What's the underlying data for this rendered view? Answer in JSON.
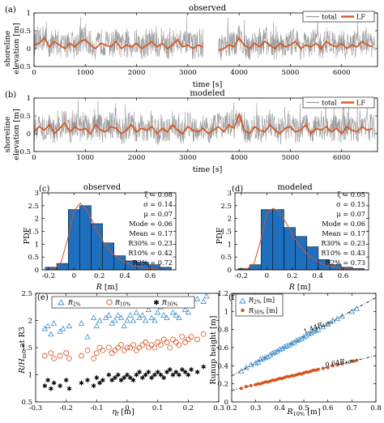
{
  "colors": {
    "total": "#9a9a9a",
    "lf": "#d9541e",
    "bar": "#1f6fbf",
    "pdf_line": "#d9541e",
    "r2": "#3a8fd0",
    "r10": "#d9541e",
    "r30": "#e8b220"
  },
  "chart_data": [
    {
      "id": "a",
      "type": "line",
      "panel_label": "(a)",
      "title": "observed",
      "ylabel": "shoreline\nelevation [m]",
      "xlabel": "time [s]",
      "xlim": [
        0,
        6700
      ],
      "ylim": [
        -0.5,
        1
      ],
      "xticks": [
        "0",
        "1000",
        "2000",
        "3000",
        "4000",
        "5000",
        "6000"
      ],
      "yticks": [
        "-0.5",
        "0",
        "0.5",
        "1"
      ],
      "legend": [
        "total",
        "LF"
      ],
      "legend_position": "top-right",
      "series": [
        {
          "name": "LF",
          "x": [
            0,
            100,
            200,
            300,
            400,
            500,
            600,
            700,
            800,
            900,
            1000,
            1100,
            1200,
            1300,
            1400,
            1500,
            1600,
            1700,
            1800,
            1900,
            2000,
            2100,
            2200,
            2300,
            2400,
            2500,
            2600,
            2700,
            2800,
            2900,
            3000,
            3100,
            3200,
            3300,
            3600,
            3700,
            3800,
            3900,
            4000,
            4100,
            4200,
            4300,
            4400,
            4500,
            4600,
            4700,
            4800,
            4900,
            5000,
            5100,
            5200,
            5300,
            5400,
            5500,
            5600,
            5700,
            5800,
            5900,
            6000,
            6100,
            6200,
            6300,
            6400,
            6500,
            6600
          ],
          "values": [
            0.1,
            0.15,
            0.3,
            0.05,
            0.2,
            0.1,
            0.0,
            0.15,
            0.05,
            0.2,
            0.25,
            0.1,
            0.0,
            0.15,
            0.1,
            0.05,
            0.2,
            0.0,
            0.1,
            0.05,
            0.15,
            0.0,
            0.1,
            0.2,
            0.05,
            0.15,
            0.0,
            0.1,
            0.25,
            0.05,
            0.1,
            0.0,
            0.1,
            0.05,
            -0.05,
            0.0,
            0.1,
            0.05,
            0.3,
            0.1,
            0.0,
            0.15,
            0.05,
            0.2,
            0.1,
            0.0,
            0.15,
            0.05,
            0.1,
            0.2,
            0.0,
            0.1,
            0.05,
            0.15,
            0.0,
            0.2,
            0.1,
            0.05,
            0.15,
            0.0,
            0.1,
            0.05,
            0.2,
            0.1,
            0.05
          ]
        }
      ]
    },
    {
      "id": "b",
      "type": "line",
      "panel_label": "(b)",
      "title": "modeled",
      "ylabel": "shoreline\nelevation [m]",
      "xlabel": "time [s]",
      "xlim": [
        0,
        6700
      ],
      "ylim": [
        -0.5,
        1
      ],
      "xticks": [
        "0",
        "1000",
        "2000",
        "3000",
        "4000",
        "5000",
        "6000"
      ],
      "yticks": [
        "-0.5",
        "0",
        "0.5",
        "1"
      ],
      "legend": [
        "total",
        "LF"
      ],
      "legend_position": "top-right",
      "series": [
        {
          "name": "LF",
          "x": [
            0,
            100,
            200,
            300,
            400,
            500,
            600,
            700,
            800,
            900,
            1000,
            1100,
            1200,
            1300,
            1400,
            1500,
            1600,
            1700,
            1800,
            1900,
            2000,
            2100,
            2200,
            2300,
            2400,
            2500,
            2600,
            2700,
            2800,
            2900,
            3000,
            3100,
            3200,
            3300,
            3400,
            3500,
            3600,
            3700,
            3800,
            3900,
            4000,
            4100,
            4200,
            4300,
            4400,
            4500,
            4600,
            4700,
            4800,
            4900,
            5000,
            5100,
            5200,
            5300,
            5400,
            5500,
            5600,
            5700,
            5800,
            5900,
            6000,
            6100,
            6200,
            6300,
            6400,
            6500,
            6600
          ],
          "values": [
            0.05,
            0.2,
            0.1,
            0.25,
            0.0,
            0.15,
            0.3,
            0.05,
            0.2,
            0.1,
            0.15,
            0.0,
            0.25,
            0.1,
            0.05,
            0.2,
            0.15,
            0.0,
            0.1,
            0.25,
            0.05,
            0.15,
            0.1,
            0.2,
            0.0,
            0.15,
            0.05,
            0.25,
            0.1,
            0.0,
            0.2,
            0.1,
            0.05,
            0.15,
            0.0,
            0.1,
            0.2,
            0.05,
            0.25,
            0.15,
            0.55,
            0.1,
            0.0,
            0.2,
            0.1,
            0.05,
            0.25,
            0.1,
            0.0,
            0.15,
            0.2,
            0.05,
            0.1,
            0.25,
            0.0,
            0.15,
            0.1,
            0.2,
            0.05,
            0.15,
            0.0,
            0.2,
            0.1,
            0.05,
            0.2,
            0.1,
            0.15
          ]
        }
      ]
    },
    {
      "id": "c",
      "type": "bar",
      "panel_label": "(c)",
      "title": "observed",
      "ylabel": "PDF",
      "xlabel": "R [m]",
      "xlim": [
        -0.25,
        0.8
      ],
      "ylim": [
        0,
        3
      ],
      "xticks": [
        "-0.2",
        "0",
        "0.2",
        "0.4",
        "0.6"
      ],
      "yticks": [
        "0",
        "0.5",
        "1",
        "1.5",
        "2",
        "2.5",
        "3"
      ],
      "bin_width": 0.09,
      "categories": [
        "-0.18",
        "-0.09",
        "0",
        "0.09",
        "0.18",
        "0.27",
        "0.36",
        "0.45",
        "0.54",
        "0.63",
        "0.72"
      ],
      "values": [
        0.1,
        0.25,
        2.35,
        2.5,
        1.8,
        1.05,
        0.55,
        0.35,
        0.3,
        0.2,
        0.1
      ],
      "fit_x": [
        -0.2,
        -0.15,
        -0.1,
        -0.05,
        0.0,
        0.05,
        0.1,
        0.15,
        0.2,
        0.25,
        0.3,
        0.35,
        0.4,
        0.45,
        0.5,
        0.55,
        0.6,
        0.65,
        0.7,
        0.75
      ],
      "fit_y": [
        0.0,
        0.05,
        0.3,
        1.2,
        2.3,
        2.6,
        2.35,
        1.85,
        1.35,
        0.95,
        0.65,
        0.45,
        0.3,
        0.2,
        0.13,
        0.08,
        0.05,
        0.03,
        0.02,
        0.01
      ],
      "stats": [
        "ξ = 0.08",
        "σ = 0.14",
        "μ = 0.07",
        "Mode = 0.06",
        "Mean = 0.17",
        "R30% = 0.23",
        "R10% = 0.42",
        "R2% = 0.72"
      ]
    },
    {
      "id": "d",
      "type": "bar",
      "panel_label": "(d)",
      "title": "modeled",
      "ylabel": "PDF",
      "xlabel": "R [m]",
      "xlim": [
        -0.25,
        0.8
      ],
      "ylim": [
        0,
        3
      ],
      "xticks": [
        "-0.2",
        "0",
        "0.2",
        "0.4",
        "0.6"
      ],
      "yticks": [
        "0",
        "0.5",
        "1",
        "1.5",
        "2",
        "2.5",
        "3"
      ],
      "bin_width": 0.09,
      "categories": [
        "-0.18",
        "-0.09",
        "0",
        "0.09",
        "0.18",
        "0.27",
        "0.36",
        "0.45",
        "0.54",
        "0.63",
        "0.72"
      ],
      "values": [
        0.05,
        0.2,
        2.35,
        2.35,
        1.65,
        1.3,
        0.9,
        0.4,
        0.2,
        0.1,
        0.05
      ],
      "fit_x": [
        -0.2,
        -0.15,
        -0.1,
        -0.05,
        0.0,
        0.05,
        0.1,
        0.15,
        0.2,
        0.25,
        0.3,
        0.35,
        0.4,
        0.45,
        0.5,
        0.55,
        0.6,
        0.65,
        0.7,
        0.75
      ],
      "fit_y": [
        0.0,
        0.05,
        0.25,
        1.1,
        2.2,
        2.4,
        2.25,
        1.85,
        1.4,
        1.0,
        0.7,
        0.48,
        0.32,
        0.21,
        0.14,
        0.09,
        0.05,
        0.03,
        0.02,
        0.01
      ],
      "stats": [
        "ξ = 0.05",
        "σ = 0.15",
        "μ = 0.07",
        "Mode = 0.06",
        "Mean = 0.17",
        "R30% = 0.23",
        "R10% = 0.43",
        "R2% = 0.73"
      ]
    },
    {
      "id": "e",
      "type": "scatter",
      "panel_label": "(e)",
      "ylabel": "R/H_m0 at R3",
      "xlabel": "ηf [m]",
      "xlim": [
        -0.3,
        0.3
      ],
      "ylim": [
        0.5,
        2.5
      ],
      "xticks": [
        "-0.3",
        "-0.2",
        "-0.1",
        "0",
        "0.1",
        "0.2",
        "0.3"
      ],
      "yticks": [
        "0.5",
        "1",
        "1.5",
        "2",
        "2.5"
      ],
      "legend": [
        "R2%",
        "R10%",
        "R30%"
      ],
      "legend_position": "top",
      "series": [
        {
          "name": "R2%",
          "x": [
            -0.27,
            -0.26,
            -0.25,
            -0.24,
            -0.22,
            -0.21,
            -0.19,
            -0.15,
            -0.13,
            -0.11,
            -0.1,
            -0.09,
            -0.07,
            -0.06,
            -0.05,
            -0.04,
            -0.03,
            -0.02,
            -0.01,
            0.0,
            0.01,
            0.02,
            0.03,
            0.04,
            0.05,
            0.06,
            0.07,
            0.08,
            0.09,
            0.1,
            0.11,
            0.12,
            0.13,
            0.14,
            0.15,
            0.16,
            0.17,
            0.18,
            0.19,
            0.2,
            0.21,
            0.23,
            0.25,
            0.26
          ],
          "values": [
            1.85,
            1.9,
            1.75,
            1.95,
            1.8,
            1.85,
            1.9,
            1.95,
            1.7,
            2.05,
            1.9,
            2.0,
            2.05,
            2.1,
            1.95,
            2.0,
            2.1,
            2.05,
            1.9,
            2.0,
            2.1,
            2.0,
            2.15,
            2.05,
            2.1,
            2.0,
            2.2,
            2.05,
            2.0,
            2.15,
            2.25,
            2.1,
            2.05,
            2.3,
            2.15,
            2.1,
            2.05,
            2.3,
            2.2,
            2.15,
            2.3,
            2.4,
            2.35,
            2.45
          ]
        },
        {
          "name": "R10%",
          "x": [
            -0.27,
            -0.25,
            -0.24,
            -0.22,
            -0.2,
            -0.19,
            -0.15,
            -0.13,
            -0.11,
            -0.1,
            -0.09,
            -0.08,
            -0.06,
            -0.05,
            -0.04,
            -0.03,
            -0.02,
            -0.01,
            0.0,
            0.01,
            0.02,
            0.03,
            0.04,
            0.05,
            0.06,
            0.07,
            0.08,
            0.09,
            0.1,
            0.11,
            0.12,
            0.13,
            0.14,
            0.15,
            0.16,
            0.17,
            0.18,
            0.19,
            0.2,
            0.21,
            0.23,
            0.25
          ],
          "values": [
            1.35,
            1.4,
            1.3,
            1.35,
            1.4,
            1.3,
            1.35,
            1.45,
            1.3,
            1.4,
            1.5,
            1.45,
            1.5,
            1.4,
            1.45,
            1.5,
            1.55,
            1.45,
            1.5,
            1.5,
            1.55,
            1.45,
            1.5,
            1.55,
            1.6,
            1.5,
            1.55,
            1.5,
            1.6,
            1.55,
            1.65,
            1.6,
            1.5,
            1.65,
            1.6,
            1.55,
            1.7,
            1.6,
            1.65,
            1.7,
            1.65,
            1.75
          ]
        },
        {
          "name": "R30%",
          "x": [
            -0.27,
            -0.26,
            -0.25,
            -0.24,
            -0.22,
            -0.2,
            -0.19,
            -0.15,
            -0.13,
            -0.11,
            -0.1,
            -0.09,
            -0.08,
            -0.06,
            -0.05,
            -0.04,
            -0.03,
            -0.02,
            -0.01,
            0.0,
            0.01,
            0.02,
            0.03,
            0.04,
            0.05,
            0.06,
            0.07,
            0.08,
            0.09,
            0.1,
            0.11,
            0.12,
            0.13,
            0.14,
            0.15,
            0.16,
            0.17,
            0.18,
            0.19,
            0.2,
            0.21,
            0.23,
            0.25
          ],
          "values": [
            0.8,
            0.9,
            0.75,
            0.85,
            0.8,
            0.9,
            0.75,
            0.85,
            0.9,
            0.8,
            0.95,
            0.85,
            0.9,
            1.0,
            0.9,
            0.95,
            1.0,
            0.9,
            0.95,
            1.0,
            0.95,
            0.9,
            1.0,
            1.05,
            0.95,
            1.0,
            1.05,
            0.95,
            1.0,
            1.05,
            1.0,
            0.95,
            1.05,
            1.1,
            1.0,
            1.05,
            1.0,
            1.1,
            1.05,
            1.0,
            1.1,
            1.05,
            1.15
          ]
        }
      ]
    },
    {
      "id": "f",
      "type": "scatter",
      "panel_label": "(f)",
      "ylabel": "Runup height [m]",
      "xlabel": "R10% [m]",
      "xlim": [
        0.2,
        0.8
      ],
      "ylim": [
        0,
        1.2
      ],
      "xticks": [
        "0.2",
        "0.3",
        "0.4",
        "0.5",
        "0.6",
        "0.7",
        "0.8"
      ],
      "yticks": [
        "0",
        "0.2",
        "0.4",
        "0.6",
        "0.8",
        "1",
        "1.2"
      ],
      "legend": [
        "R2% [m]",
        "R30% [m]"
      ],
      "legend_position": "top-left",
      "annotations": [
        "1.44R10%",
        "0.64R10%"
      ],
      "fit_lines": [
        {
          "series": "R2% [m]",
          "slope": 1.44,
          "x": [
            0.2,
            0.8
          ]
        },
        {
          "series": "R30% [m]",
          "slope": 0.64,
          "x": [
            0.2,
            0.8
          ]
        }
      ],
      "series": [
        {
          "name": "R2% [m]",
          "x": [
            0.24,
            0.26,
            0.28,
            0.3,
            0.31,
            0.32,
            0.33,
            0.34,
            0.35,
            0.36,
            0.37,
            0.38,
            0.39,
            0.4,
            0.41,
            0.42,
            0.43,
            0.44,
            0.45,
            0.46,
            0.47,
            0.48,
            0.49,
            0.5,
            0.51,
            0.52,
            0.53,
            0.54,
            0.55,
            0.56,
            0.58,
            0.6,
            0.62,
            0.64,
            0.66,
            0.7,
            0.72
          ],
          "values": [
            0.34,
            0.38,
            0.41,
            0.43,
            0.44,
            0.47,
            0.48,
            0.49,
            0.5,
            0.52,
            0.54,
            0.55,
            0.56,
            0.58,
            0.59,
            0.61,
            0.62,
            0.63,
            0.65,
            0.66,
            0.68,
            0.69,
            0.7,
            0.72,
            0.73,
            0.75,
            0.76,
            0.78,
            0.79,
            0.8,
            0.83,
            0.86,
            0.9,
            0.92,
            0.95,
            1.0,
            1.03
          ]
        },
        {
          "name": "R30% [m]",
          "x": [
            0.24,
            0.26,
            0.28,
            0.3,
            0.31,
            0.32,
            0.33,
            0.34,
            0.35,
            0.36,
            0.37,
            0.38,
            0.39,
            0.4,
            0.41,
            0.42,
            0.43,
            0.44,
            0.45,
            0.46,
            0.47,
            0.48,
            0.49,
            0.5,
            0.51,
            0.52,
            0.53,
            0.54,
            0.55,
            0.56,
            0.58,
            0.6,
            0.62,
            0.64,
            0.66,
            0.7,
            0.72
          ],
          "values": [
            0.15,
            0.17,
            0.18,
            0.19,
            0.2,
            0.2,
            0.21,
            0.22,
            0.22,
            0.23,
            0.24,
            0.24,
            0.25,
            0.26,
            0.26,
            0.27,
            0.28,
            0.28,
            0.29,
            0.29,
            0.3,
            0.31,
            0.31,
            0.32,
            0.33,
            0.33,
            0.34,
            0.35,
            0.35,
            0.36,
            0.37,
            0.38,
            0.4,
            0.41,
            0.42,
            0.45,
            0.46
          ]
        }
      ]
    }
  ]
}
